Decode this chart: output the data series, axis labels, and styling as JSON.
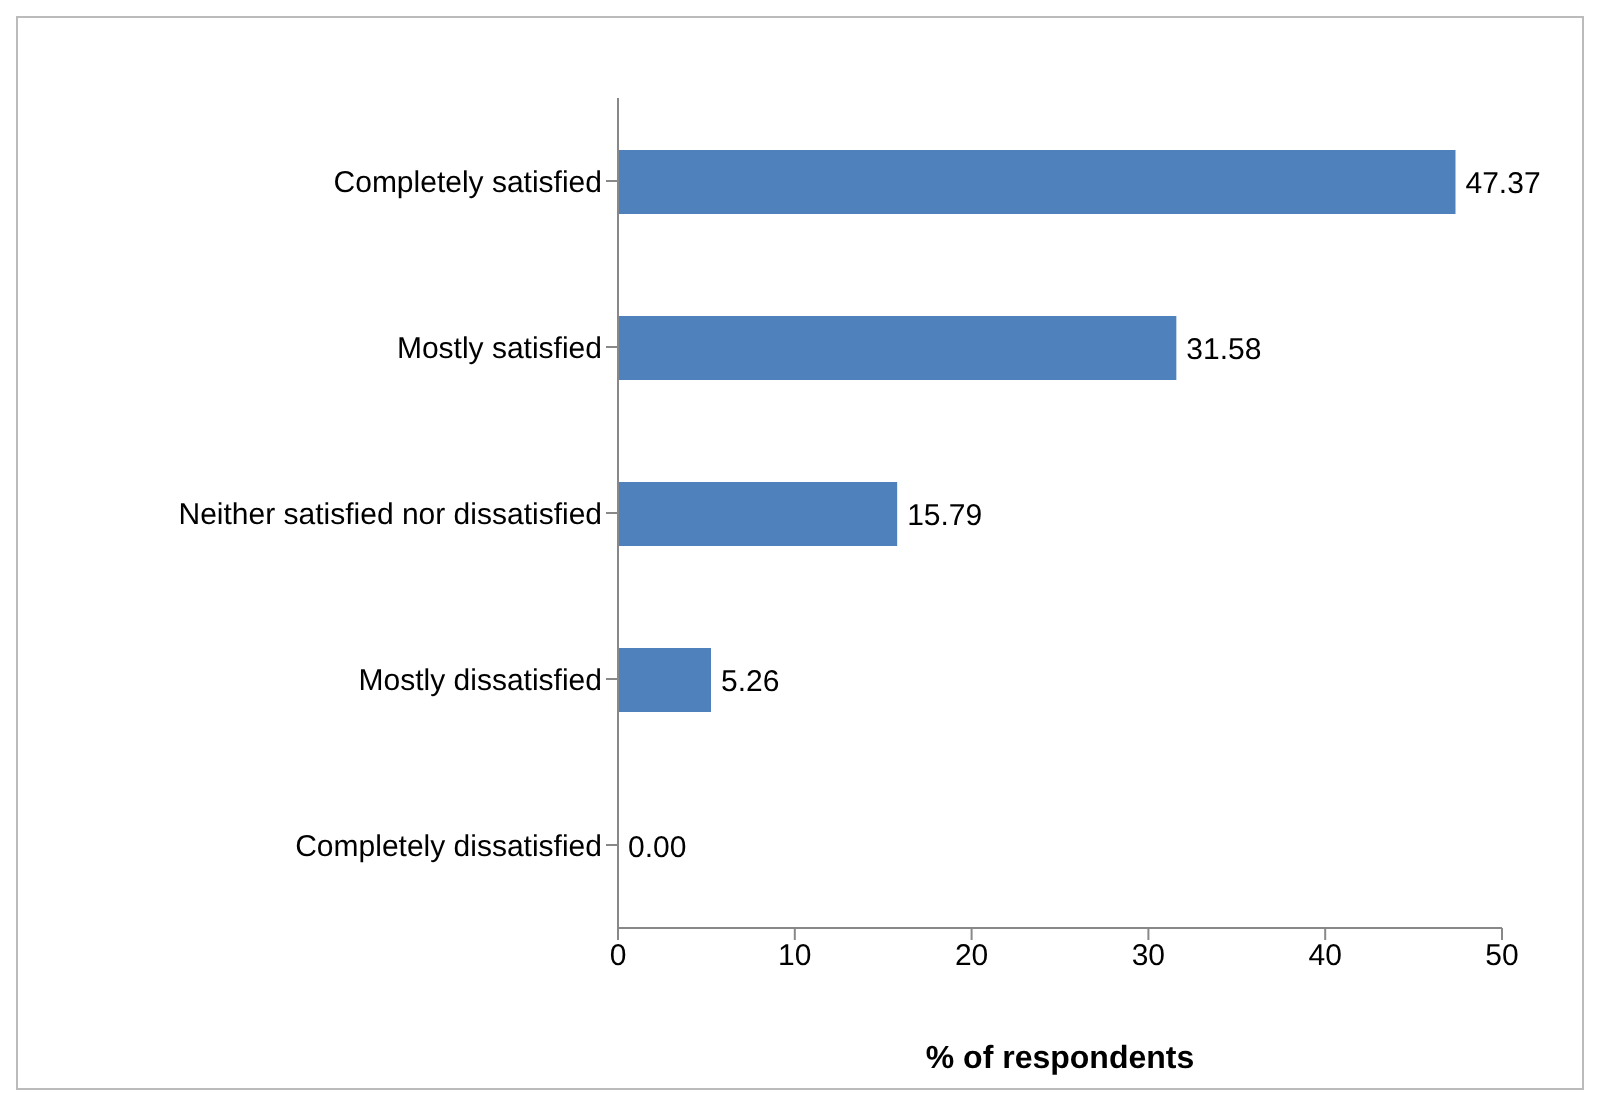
{
  "chart_data": {
    "type": "bar",
    "orientation": "horizontal",
    "xlabel": "% of respondents",
    "categories": [
      "Completely satisfied",
      "Mostly satisfied",
      "Neither satisfied nor dissatisfied",
      "Mostly dissatisfied",
      "Completely dissatisfied"
    ],
    "values": [
      47.37,
      31.58,
      15.79,
      5.26,
      0
    ],
    "value_labels": [
      "47.37",
      "31.58",
      "15.79",
      "5.26",
      "0.00"
    ],
    "color": "#4f81bd",
    "xlim": [
      0,
      50
    ],
    "xticks": [
      0,
      10,
      20,
      30,
      40,
      50
    ],
    "grid": false,
    "legend": false
  }
}
